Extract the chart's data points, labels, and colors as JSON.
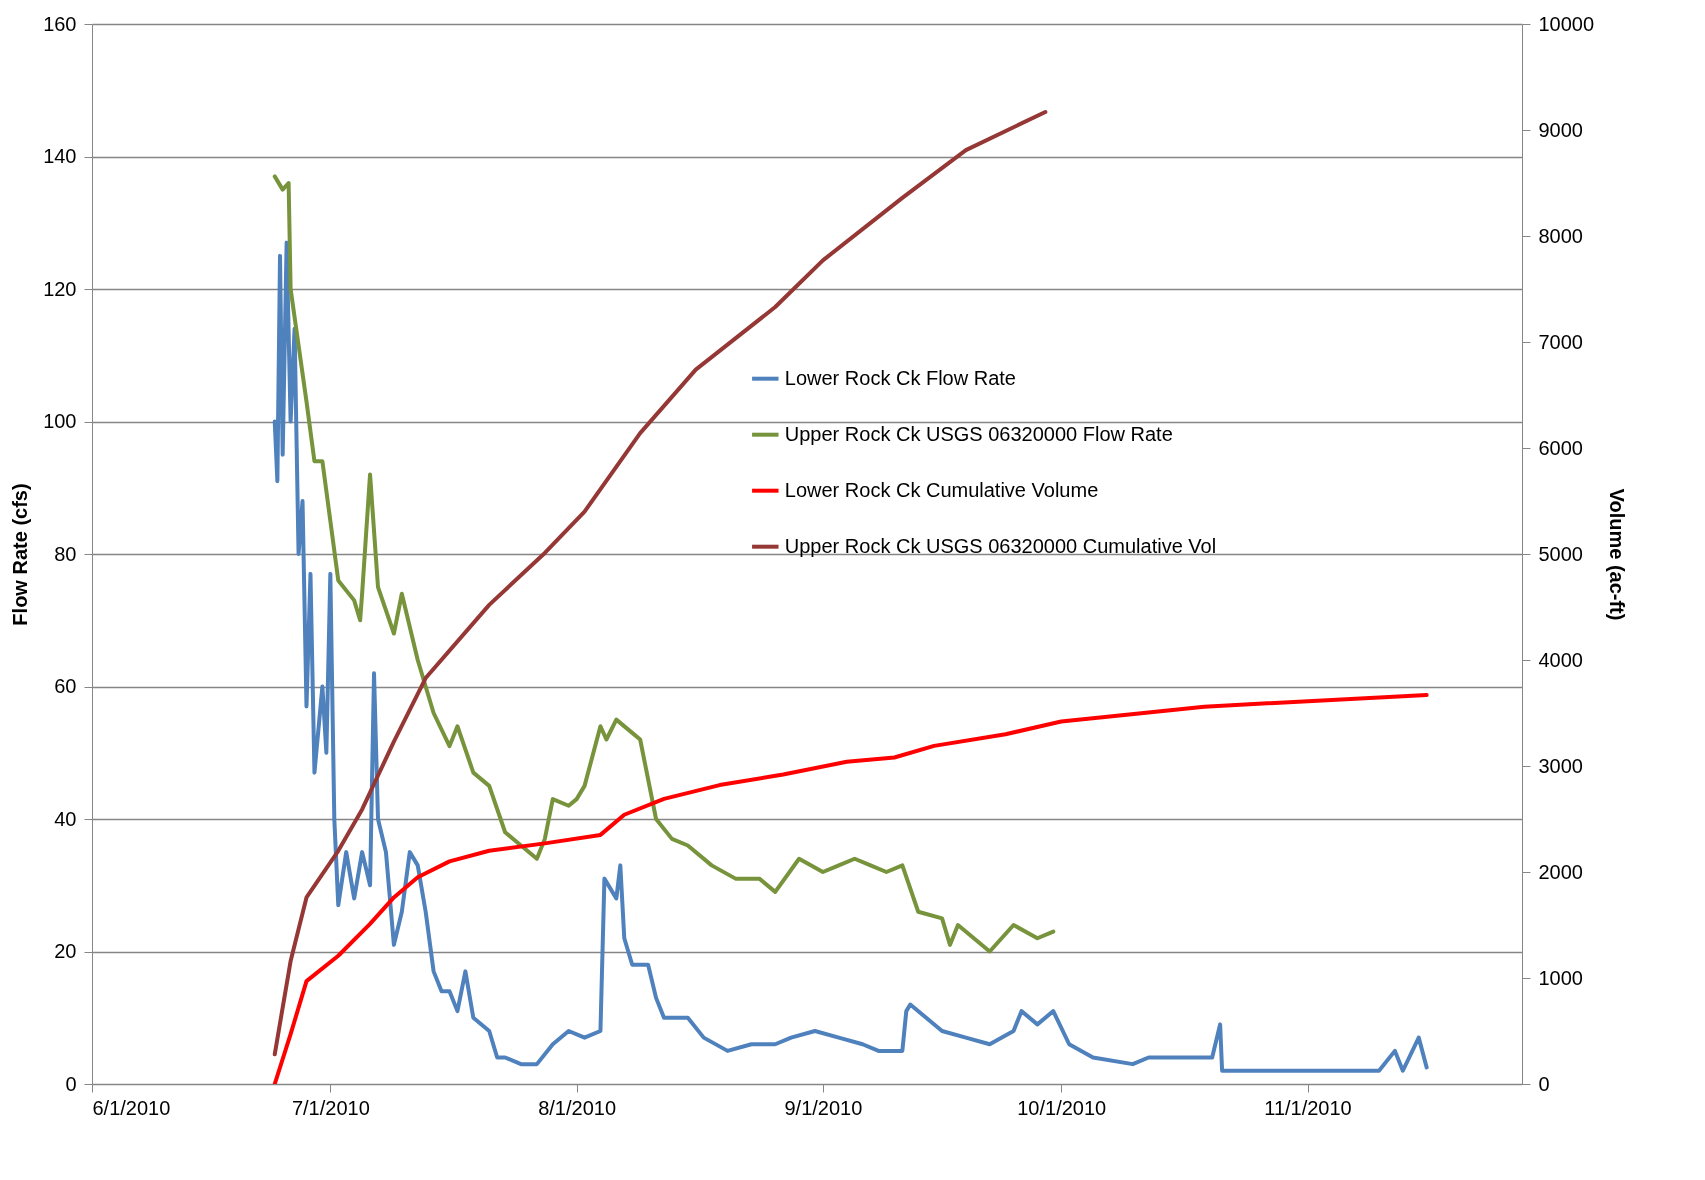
{
  "chart_data": {
    "type": "line",
    "ylabel": "Flow Rate (cfs)",
    "y2label": "Volume (ac-ft)",
    "xlim": [
      "2010-06-01",
      "2010-11-28"
    ],
    "xticks": [
      {
        "value": "2010-06-01",
        "label": "6/1/2010"
      },
      {
        "value": "2010-07-01",
        "label": "7/1/2010"
      },
      {
        "value": "2010-08-01",
        "label": "8/1/2010"
      },
      {
        "value": "2010-09-01",
        "label": "9/1/2010"
      },
      {
        "value": "2010-10-01",
        "label": "10/1/2010"
      },
      {
        "value": "2010-11-01",
        "label": "11/1/2010"
      }
    ],
    "ylim": [
      0,
      160
    ],
    "yticks": [
      0,
      20,
      40,
      60,
      80,
      100,
      120,
      140,
      160
    ],
    "y2lim": [
      0,
      10000
    ],
    "y2ticks": [
      0,
      1000,
      2000,
      3000,
      4000,
      5000,
      6000,
      7000,
      8000,
      9000,
      10000
    ],
    "grid": "y",
    "legend": "top",
    "line_style": "solid",
    "marker": "none",
    "series": [
      {
        "name": "Lower Rock Ck Flow Rate",
        "color": "#4f81bd",
        "x": [
          "2010-06-24",
          "2010-06-24T08:00",
          "2010-06-24T16:00",
          "2010-06-25",
          "2010-06-25T12:00",
          "2010-06-26",
          "2010-06-26T12:00",
          "2010-06-27",
          "2010-06-27T12:00",
          "2010-06-28",
          "2010-06-28T12:00",
          "2010-06-29",
          "2010-06-30",
          "2010-06-30T12:00",
          "2010-07-01",
          "2010-07-01T12:00",
          "2010-07-02",
          "2010-07-03",
          "2010-07-04",
          "2010-07-05",
          "2010-07-06",
          "2010-07-06T12:00",
          "2010-07-07",
          "2010-07-08",
          "2010-07-09",
          "2010-07-10",
          "2010-07-11",
          "2010-07-12",
          "2010-07-13",
          "2010-07-14",
          "2010-07-15",
          "2010-07-16",
          "2010-07-17",
          "2010-07-18",
          "2010-07-19",
          "2010-07-21",
          "2010-07-22",
          "2010-07-23",
          "2010-07-25",
          "2010-07-27",
          "2010-07-29",
          "2010-07-31",
          "2010-08-02",
          "2010-08-04",
          "2010-08-04T12:00",
          "2010-08-06",
          "2010-08-06T12:00",
          "2010-08-07",
          "2010-08-08",
          "2010-08-10",
          "2010-08-11",
          "2010-08-12",
          "2010-08-15",
          "2010-08-17",
          "2010-08-20",
          "2010-08-23",
          "2010-08-26",
          "2010-08-28",
          "2010-08-31",
          "2010-09-03",
          "2010-09-06",
          "2010-09-08",
          "2010-09-11",
          "2010-09-11T12:00",
          "2010-09-12",
          "2010-09-14",
          "2010-09-16",
          "2010-09-19",
          "2010-09-22",
          "2010-09-25",
          "2010-09-26",
          "2010-09-28",
          "2010-09-30",
          "2010-10-02",
          "2010-10-05",
          "2010-10-10",
          "2010-10-12",
          "2010-10-16",
          "2010-10-20",
          "2010-10-21",
          "2010-10-21T06:00",
          "2010-10-27",
          "2010-11-03",
          "2010-11-10",
          "2010-11-12",
          "2010-11-13",
          "2010-11-15",
          "2010-11-16"
        ],
        "values": [
          100,
          91,
          125,
          95,
          127,
          100,
          114,
          80,
          88,
          57,
          77,
          47,
          60,
          50,
          77,
          40,
          27,
          35,
          28,
          35,
          30,
          62,
          40,
          35,
          21,
          26,
          35,
          33,
          26,
          17,
          14,
          14,
          11,
          17,
          10,
          8,
          4,
          4,
          3,
          3,
          6,
          8,
          7,
          8,
          31,
          28,
          33,
          22,
          18,
          18,
          13,
          10,
          10,
          7,
          5,
          6,
          6,
          7,
          8,
          7,
          6,
          5,
          5,
          11,
          12,
          10,
          8,
          7,
          6,
          8,
          11,
          9,
          11,
          6,
          4,
          3,
          4,
          4,
          4,
          9,
          2,
          2,
          2,
          2,
          5,
          2,
          7,
          2.5
        ]
      },
      {
        "name": "Upper Rock Ck USGS 06320000 Flow Rate",
        "color": "#77933c",
        "x": [
          "2010-06-24",
          "2010-06-25",
          "2010-06-25T18:00",
          "2010-06-26",
          "2010-06-28",
          "2010-06-29",
          "2010-06-30",
          "2010-07-02",
          "2010-07-04",
          "2010-07-04T18:00",
          "2010-07-05",
          "2010-07-06",
          "2010-07-07",
          "2010-07-09",
          "2010-07-10",
          "2010-07-12",
          "2010-07-14",
          "2010-07-16",
          "2010-07-17",
          "2010-07-19",
          "2010-07-21",
          "2010-07-23",
          "2010-07-25",
          "2010-07-27",
          "2010-07-28",
          "2010-07-29",
          "2010-07-31",
          "2010-08-01",
          "2010-08-02",
          "2010-08-04",
          "2010-08-04T18:00",
          "2010-08-06",
          "2010-08-08",
          "2010-08-09",
          "2010-08-11",
          "2010-08-13",
          "2010-08-15",
          "2010-08-18",
          "2010-08-21",
          "2010-08-24",
          "2010-08-26",
          "2010-08-29",
          "2010-09-01",
          "2010-09-03",
          "2010-09-05",
          "2010-09-07",
          "2010-09-09",
          "2010-09-11",
          "2010-09-13",
          "2010-09-16",
          "2010-09-17",
          "2010-09-18",
          "2010-09-22",
          "2010-09-25",
          "2010-09-28",
          "2010-09-30"
        ],
        "values": [
          137,
          135,
          136,
          120,
          103,
          94,
          94,
          76,
          73,
          70,
          74,
          92,
          75,
          68,
          74,
          64,
          56,
          51,
          54,
          47,
          45,
          38,
          36,
          34,
          37,
          43,
          42,
          43,
          45,
          54,
          52,
          55,
          53,
          52,
          40,
          37,
          36,
          33,
          31,
          31,
          29,
          34,
          32,
          33,
          34,
          33,
          32,
          33,
          26,
          25,
          21,
          24,
          20,
          24,
          22,
          23
        ]
      },
      {
        "name": "Lower Rock Ck Cumulative Volume",
        "color": "#ff0000",
        "axis": "y2",
        "x": [
          "2010-06-24",
          "2010-06-26",
          "2010-06-28",
          "2010-07-02",
          "2010-07-06",
          "2010-07-09",
          "2010-07-12",
          "2010-07-16",
          "2010-07-21",
          "2010-07-28",
          "2010-08-04",
          "2010-08-07",
          "2010-08-12",
          "2010-08-19",
          "2010-08-27",
          "2010-09-04",
          "2010-09-10",
          "2010-09-15",
          "2010-09-24",
          "2010-10-01",
          "2010-10-19",
          "2010-11-16"
        ],
        "values": [
          0,
          470,
          970,
          1210,
          1510,
          1760,
          1950,
          2100,
          2200,
          2270,
          2350,
          2540,
          2690,
          2820,
          2920,
          3040,
          3080,
          3190,
          3300,
          3420,
          3560,
          3670
        ]
      },
      {
        "name": "Upper Rock Ck USGS 06320000 Cumulative Vol",
        "color": "#953735",
        "axis": "y2",
        "x": [
          "2010-06-24",
          "2010-06-26",
          "2010-06-28",
          "2010-07-02",
          "2010-07-05",
          "2010-07-09",
          "2010-07-13",
          "2010-07-21",
          "2010-07-28",
          "2010-08-02",
          "2010-08-09",
          "2010-08-16",
          "2010-08-26",
          "2010-09-01",
          "2010-09-11",
          "2010-09-19",
          "2010-09-29"
        ],
        "values": [
          280,
          1160,
          1760,
          2200,
          2590,
          3230,
          3830,
          4520,
          5010,
          5400,
          6140,
          6740,
          7330,
          7770,
          8360,
          8810,
          9170
        ]
      }
    ]
  }
}
